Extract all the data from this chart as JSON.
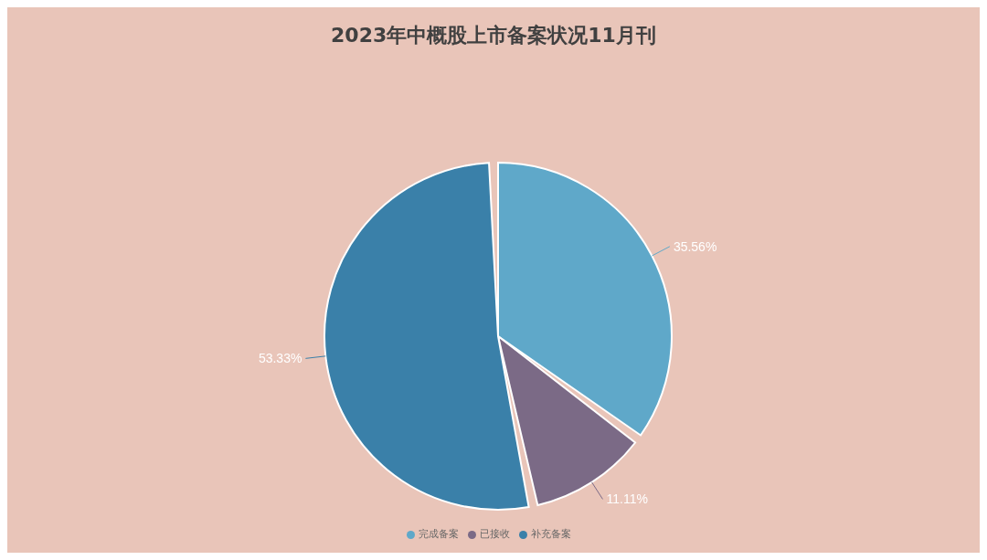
{
  "chart_data": {
    "type": "pie",
    "title": "2023年中概股上市备案状况11月刊",
    "categories": [
      "完成备案",
      "已接收",
      "补充备案"
    ],
    "values": [
      35.56,
      11.11,
      53.33
    ],
    "colors": [
      "#5fa8c9",
      "#7b6a86",
      "#3a80a9"
    ],
    "value_labels": [
      "35.56%",
      "11.11%",
      "53.33%"
    ],
    "legend": "bottom"
  }
}
